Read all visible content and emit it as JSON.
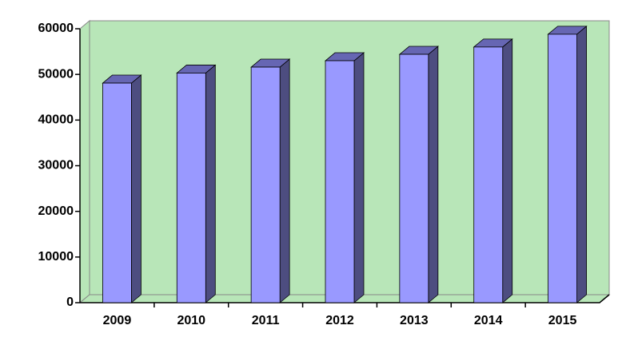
{
  "chart_data": {
    "type": "bar",
    "categories": [
      "2009",
      "2010",
      "2011",
      "2012",
      "2013",
      "2014",
      "2015"
    ],
    "values": [
      48100,
      50300,
      51600,
      53000,
      54400,
      56000,
      58800
    ],
    "color": "#9999ff",
    "ylim": [
      0,
      60000
    ],
    "yticks": [
      0,
      10000,
      20000,
      30000,
      40000,
      50000,
      60000
    ]
  }
}
